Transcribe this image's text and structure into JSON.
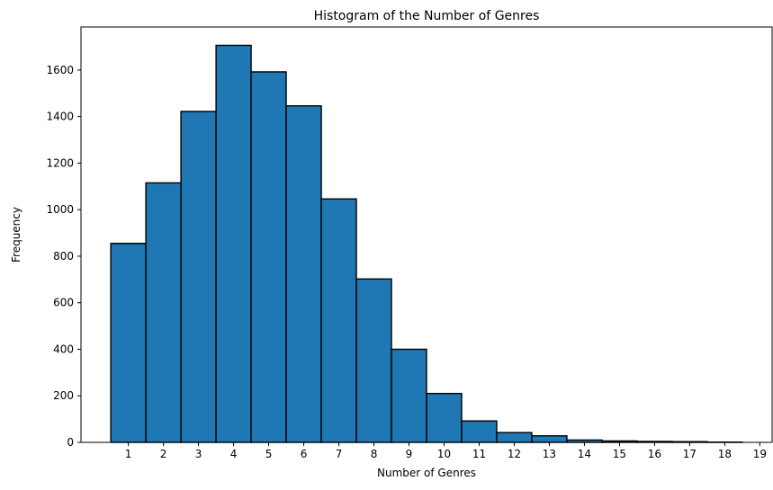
{
  "chart_data": {
    "type": "bar",
    "title": "Histogram of the Number of Genres",
    "xlabel": "Number of Genres",
    "ylabel": "Frequency",
    "categories": [
      "1",
      "2",
      "3",
      "4",
      "5",
      "6",
      "7",
      "8",
      "9",
      "10",
      "11",
      "12",
      "13",
      "14",
      "15",
      "16",
      "17",
      "18"
    ],
    "values": [
      855,
      1115,
      1422,
      1706,
      1592,
      1446,
      1046,
      702,
      400,
      210,
      92,
      42,
      28,
      10,
      6,
      4,
      3,
      1
    ],
    "x_ticks": [
      "1",
      "2",
      "3",
      "4",
      "5",
      "6",
      "7",
      "8",
      "9",
      "10",
      "11",
      "12",
      "13",
      "14",
      "15",
      "16",
      "17",
      "18",
      "19"
    ],
    "y_ticks": [
      0,
      200,
      400,
      600,
      800,
      1000,
      1200,
      1400,
      1600
    ],
    "ylim": [
      0,
      1785
    ],
    "xlim": [
      -0.35,
      19.35
    ],
    "grid": false,
    "bar_color": "#1f77b4",
    "edge_color": "#000000"
  }
}
